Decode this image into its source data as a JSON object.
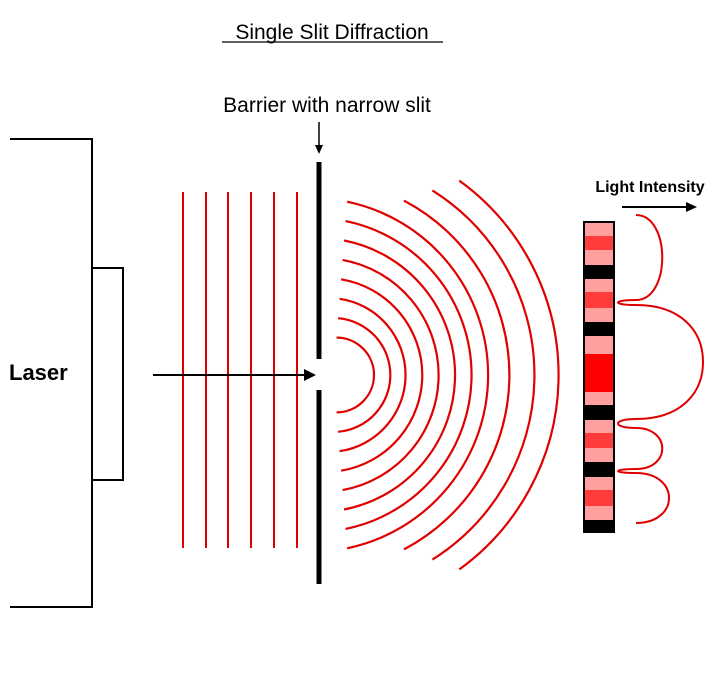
{
  "diagram": {
    "title": "Single Slit Diffraction",
    "barrier_label": "Barrier with narrow slit",
    "intensity_label": "Light Intensity",
    "laser_label": "Laser"
  },
  "colors": {
    "wave": "#e00000",
    "outline": "#000000",
    "fringe_bright": "#ff0000",
    "fringe_medium": "#ff3b3b",
    "fringe_light": "#ffa0a0",
    "fringe_dark": "#000000"
  }
}
